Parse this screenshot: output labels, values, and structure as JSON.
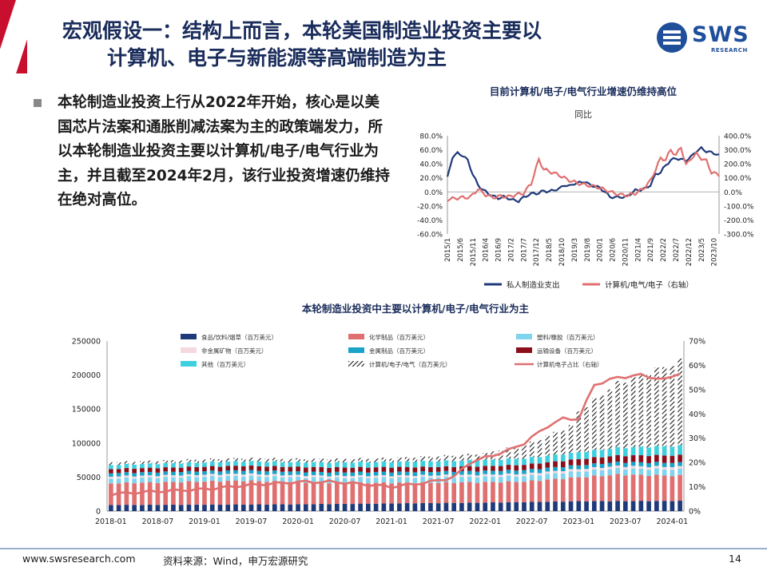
{
  "header": {
    "title_line1": "宏观假设一：结构上而言，本轮美国制造业投资主要以",
    "title_line2": "计算机、电子与新能源等高端制造为主",
    "logo_text": "SWS",
    "logo_sub": "RESEARCH"
  },
  "body": {
    "paragraph": "本轮制造业投资上行从2022年开始，核心是以美国芯片法案和通胀削减法案为主的政策端发力，所以本轮制造业投资主要以计算机/电子/电气行业为主，并且截至2024年2月，该行业投资增速仍维持在绝对高位。"
  },
  "footer": {
    "website": "www.swsresearch.com",
    "source": "资料来源：Wind，申万宏源研究",
    "page_number": "14"
  },
  "chart_data": [
    {
      "type": "line",
      "title": "目前计算机/电子/电气行业增速仍维持高位",
      "subtitle": "同比",
      "x_tick_labels": [
        "2015/1",
        "2015/6",
        "2015/11",
        "2016/4",
        "2016/9",
        "2017/2",
        "2017/7",
        "2017/12",
        "2018/5",
        "2018/10",
        "2019/3",
        "2019/8",
        "2020/1",
        "2020/6",
        "2020/11",
        "2021/4",
        "2021/9",
        "2022/2",
        "2022/7",
        "2022/12",
        "2023/5",
        "2023/10"
      ],
      "x_range": [
        "2015/1",
        "2023/12"
      ],
      "y_left": {
        "ticks": [
          "80.0%",
          "60.0%",
          "40.0%",
          "20.0%",
          "0.0%",
          "-20.0%",
          "-40.0%",
          "-60.0%"
        ],
        "ylim": [
          -60,
          80
        ]
      },
      "y_right": {
        "ticks": [
          "400.0%",
          "300.0%",
          "200.0%",
          "100.0%",
          "0.0%",
          "-100.0%",
          "-200.0%",
          "-300.0%"
        ],
        "ylim": [
          -300,
          400
        ]
      },
      "legend_position": "bottom",
      "series": [
        {
          "name": "私人制造业支出",
          "axis": "left",
          "color": "#1f3a7a",
          "points": [
            [
              "2015/1",
              20
            ],
            [
              "2015/3",
              50
            ],
            [
              "2015/5",
              55
            ],
            [
              "2015/7",
              52
            ],
            [
              "2015/9",
              45
            ],
            [
              "2015/11",
              25
            ],
            [
              "2016/1",
              10
            ],
            [
              "2016/3",
              3
            ],
            [
              "2016/5",
              -2
            ],
            [
              "2016/7",
              -6
            ],
            [
              "2016/9",
              -9
            ],
            [
              "2016/11",
              -7
            ],
            [
              "2017/1",
              -9
            ],
            [
              "2017/3",
              -12
            ],
            [
              "2017/5",
              -13
            ],
            [
              "2017/7",
              -8
            ],
            [
              "2017/9",
              -4
            ],
            [
              "2017/11",
              -2
            ],
            [
              "2018/1",
              -2
            ],
            [
              "2018/3",
              2
            ],
            [
              "2018/5",
              0
            ],
            [
              "2018/7",
              3
            ],
            [
              "2018/9",
              4
            ],
            [
              "2018/11",
              10
            ],
            [
              "2019/1",
              8
            ],
            [
              "2019/3",
              12
            ],
            [
              "2019/5",
              13
            ],
            [
              "2019/7",
              15
            ],
            [
              "2019/9",
              10
            ],
            [
              "2019/11",
              8
            ],
            [
              "2020/1",
              6
            ],
            [
              "2020/3",
              0
            ],
            [
              "2020/5",
              -7
            ],
            [
              "2020/7",
              -8
            ],
            [
              "2020/9",
              -7
            ],
            [
              "2020/11",
              -8
            ],
            [
              "2021/1",
              -3
            ],
            [
              "2021/3",
              2
            ],
            [
              "2021/5",
              3
            ],
            [
              "2021/7",
              5
            ],
            [
              "2021/9",
              10
            ],
            [
              "2021/11",
              25
            ],
            [
              "2022/1",
              28
            ],
            [
              "2022/3",
              38
            ],
            [
              "2022/5",
              45
            ],
            [
              "2022/7",
              48
            ],
            [
              "2022/9",
              46
            ],
            [
              "2022/11",
              45
            ],
            [
              "2023/1",
              50
            ],
            [
              "2023/3",
              58
            ],
            [
              "2023/5",
              62
            ],
            [
              "2023/7",
              58
            ],
            [
              "2023/9",
              56
            ],
            [
              "2023/11",
              54
            ],
            [
              "2023/12",
              52
            ]
          ]
        },
        {
          "name": "计算机/电气/电子（右轴）",
          "axis": "right",
          "color": "#e07070",
          "points": [
            [
              "2015/1",
              -55
            ],
            [
              "2015/4",
              -45
            ],
            [
              "2015/7",
              -40
            ],
            [
              "2015/10",
              -38
            ],
            [
              "2016/1",
              20
            ],
            [
              "2016/4",
              -20
            ],
            [
              "2016/7",
              -40
            ],
            [
              "2016/10",
              -30
            ],
            [
              "2017/1",
              -35
            ],
            [
              "2017/4",
              -20
            ],
            [
              "2017/7",
              -10
            ],
            [
              "2017/10",
              60
            ],
            [
              "2018/1",
              230
            ],
            [
              "2018/3",
              160
            ],
            [
              "2018/6",
              140
            ],
            [
              "2018/9",
              120
            ],
            [
              "2018/12",
              90
            ],
            [
              "2019/3",
              70
            ],
            [
              "2019/6",
              55
            ],
            [
              "2019/9",
              45
            ],
            [
              "2019/12",
              35
            ],
            [
              "2020/3",
              15
            ],
            [
              "2020/6",
              -5
            ],
            [
              "2020/9",
              -20
            ],
            [
              "2020/12",
              -25
            ],
            [
              "2021/3",
              -10
            ],
            [
              "2021/6",
              20
            ],
            [
              "2021/9",
              80
            ],
            [
              "2021/11",
              160
            ],
            [
              "2022/1",
              240
            ],
            [
              "2022/3",
              230
            ],
            [
              "2022/5",
              300
            ],
            [
              "2022/7",
              260
            ],
            [
              "2022/9",
              320
            ],
            [
              "2022/11",
              190
            ],
            [
              "2023/1",
              240
            ],
            [
              "2023/3",
              270
            ],
            [
              "2023/5",
              240
            ],
            [
              "2023/7",
              220
            ],
            [
              "2023/9",
              140
            ],
            [
              "2023/12",
              120
            ]
          ]
        }
      ]
    },
    {
      "type": "bar",
      "subtype": "stacked_bar_with_line",
      "title": "本轮制造业投资中主要以计算机/电子/电气行业为主",
      "x_tick_labels": [
        "2018-01",
        "2018-07",
        "2019-01",
        "2019-07",
        "2020-01",
        "2020-07",
        "2021-01",
        "2021-07",
        "2022-01",
        "2022-07",
        "2023-01",
        "2023-07",
        "2024-01"
      ],
      "x_range": [
        "2018-01",
        "2024-02"
      ],
      "y_left": {
        "ticks": [
          "250000",
          "200000",
          "150000",
          "100000",
          "50000",
          "0"
        ],
        "ylim": [
          0,
          250000
        ]
      },
      "y_right": {
        "ticks": [
          "70%",
          "60%",
          "50%",
          "40%",
          "30%",
          "20%",
          "10%",
          "0%"
        ],
        "ylim": [
          0,
          70
        ]
      },
      "legend_position": "top",
      "series": [
        {
          "name": "食品/饮料/烟草（百万美元）",
          "color": "#1f3a7a",
          "style": "bar"
        },
        {
          "name": "化学制品（百万美元）",
          "color": "#e07070",
          "style": "bar"
        },
        {
          "name": "塑料/橡胶（百万美元）",
          "color": "#7fd4ee",
          "style": "bar"
        },
        {
          "name": "非金属矿物（百万美元）",
          "color": "#f4d9df",
          "style": "bar"
        },
        {
          "name": "金属制品（百万美元）",
          "color": "#19a3c9",
          "style": "bar"
        },
        {
          "name": "运输设备（百万美元）",
          "color": "#8b0f1a",
          "style": "bar"
        },
        {
          "name": "其他（百万美元）",
          "color": "#3fd0e0",
          "style": "bar"
        },
        {
          "name": "计算机/电子/电气（百万美元）",
          "color": "#1c1c1c",
          "style": "hatched_bar"
        },
        {
          "name": "计算机电子占比（右轴）",
          "color": "#e07070",
          "style": "line",
          "axis": "right"
        }
      ],
      "monthly_keypoints": {
        "food": [
          [
            "2018-01",
            9000
          ],
          [
            "2020-01",
            10000
          ],
          [
            "2022-01",
            12500
          ],
          [
            "2023-01",
            14500
          ],
          [
            "2024-02",
            15000
          ]
        ],
        "chemical": [
          [
            "2018-01",
            32000
          ],
          [
            "2019-06",
            35000
          ],
          [
            "2020-06",
            31000
          ],
          [
            "2021-06",
            30000
          ],
          [
            "2022-06",
            30000
          ],
          [
            "2023-06",
            39000
          ],
          [
            "2024-02",
            37000
          ]
        ],
        "plastic": [
          [
            "2018-01",
            7000
          ],
          [
            "2020-01",
            7000
          ],
          [
            "2022-01",
            8000
          ],
          [
            "2024-02",
            9000
          ]
        ],
        "nonmetal": [
          [
            "2018-01",
            3000
          ],
          [
            "2022-01",
            3000
          ],
          [
            "2024-02",
            4000
          ]
        ],
        "metal": [
          [
            "2018-01",
            5000
          ],
          [
            "2022-01",
            5500
          ],
          [
            "2024-02",
            6000
          ]
        ],
        "transport": [
          [
            "2018-01",
            6000
          ],
          [
            "2020-01",
            7000
          ],
          [
            "2022-01",
            7000
          ],
          [
            "2024-02",
            11000
          ]
        ],
        "other": [
          [
            "2018-01",
            6000
          ],
          [
            "2020-01",
            7000
          ],
          [
            "2022-01",
            9000
          ],
          [
            "2023-01",
            10000
          ],
          [
            "2024-02",
            14000
          ]
        ],
        "computer_electronic": [
          [
            "2018-01",
            4000
          ],
          [
            "2019-01",
            4500
          ],
          [
            "2020-01",
            5000
          ],
          [
            "2021-01",
            5500
          ],
          [
            "2021-09",
            8000
          ],
          [
            "2022-01",
            10000
          ],
          [
            "2022-07",
            22000
          ],
          [
            "2022-12",
            40000
          ],
          [
            "2023-01",
            60000
          ],
          [
            "2023-06",
            95000
          ],
          [
            "2024-02",
            124000
          ]
        ],
        "share_pct": [
          [
            "2018-01",
            7
          ],
          [
            "2018-06",
            8
          ],
          [
            "2019-01",
            9
          ],
          [
            "2019-06",
            10.5
          ],
          [
            "2020-01",
            12
          ],
          [
            "2020-06",
            12
          ],
          [
            "2021-01",
            10
          ],
          [
            "2021-06",
            12
          ],
          [
            "2021-09",
            14
          ],
          [
            "2021-11",
            20
          ],
          [
            "2022-01",
            22
          ],
          [
            "2022-04",
            25
          ],
          [
            "2022-06",
            28
          ],
          [
            "2022-09",
            35
          ],
          [
            "2022-11",
            38
          ],
          [
            "2023-01",
            38
          ],
          [
            "2023-03",
            52
          ],
          [
            "2023-06",
            55
          ],
          [
            "2023-09",
            56
          ],
          [
            "2023-12",
            54
          ],
          [
            "2024-02",
            57
          ]
        ]
      }
    }
  ]
}
